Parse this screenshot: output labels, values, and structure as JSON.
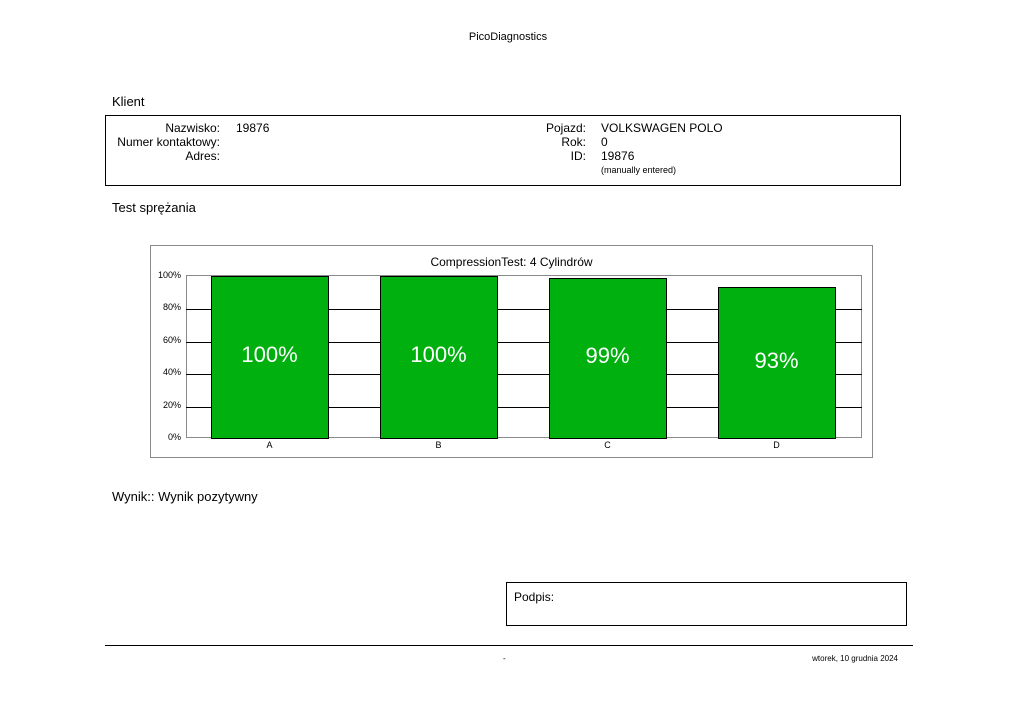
{
  "app_title": "PicoDiagnostics",
  "client": {
    "heading": "Klient",
    "fields_left": [
      {
        "label": "Nazwisko:",
        "value": "19876"
      },
      {
        "label": "Numer kontaktowy:",
        "value": ""
      },
      {
        "label": "Adres:",
        "value": ""
      }
    ],
    "fields_right": [
      {
        "label": "Pojazd:",
        "value": "VOLKSWAGEN POLO"
      },
      {
        "label": "Rok:",
        "value": "0"
      },
      {
        "label": "ID:",
        "value": "19876"
      }
    ],
    "id_note": "(manually entered)"
  },
  "test": {
    "heading": "Test sprężania"
  },
  "chart_data": {
    "type": "bar",
    "title": "CompressionTest: 4 Cylindrów",
    "categories": [
      "A",
      "B",
      "C",
      "D"
    ],
    "values": [
      100,
      100,
      99,
      93
    ],
    "value_labels": [
      "100%",
      "100%",
      "99%",
      "93%"
    ],
    "yticks": [
      "0%",
      "20%",
      "40%",
      "60%",
      "80%",
      "100%"
    ],
    "ylim": [
      0,
      100
    ],
    "grid": true,
    "bar_color": "#00b00f",
    "label_color": "#ffffff"
  },
  "result": {
    "text": "Wynik:: Wynik pozytywny"
  },
  "signature": {
    "label": "Podpis:"
  },
  "footer": {
    "left_text": "-",
    "date": "wtorek, 10 grudnia 2024"
  }
}
